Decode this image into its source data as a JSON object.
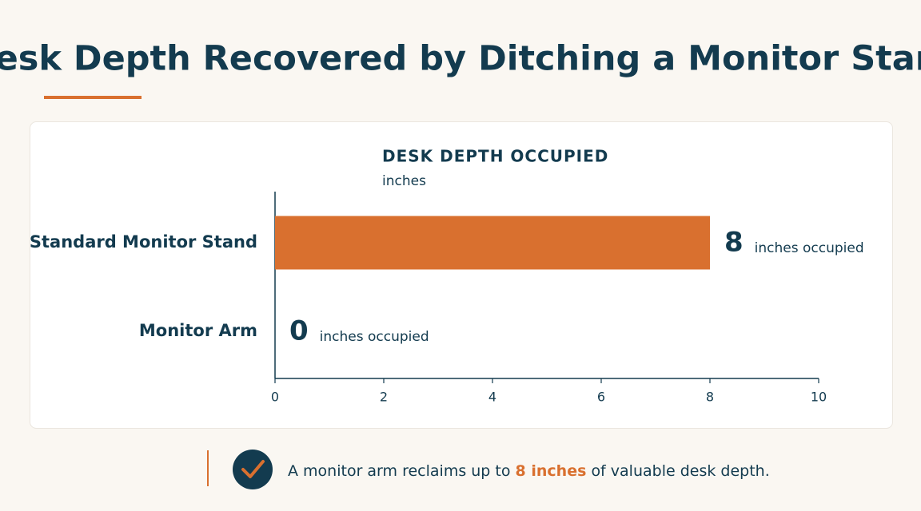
{
  "chart_data": {
    "type": "bar",
    "orientation": "horizontal",
    "title": "Desk Depth Recovered by Ditching a Monitor Stand",
    "chart_title": "DESK DEPTH OCCUPIED",
    "axis_unit": "inches",
    "categories": [
      "Standard Monitor Stand",
      "Monitor Arm"
    ],
    "values": [
      8,
      0
    ],
    "value_suffix": "inches occupied",
    "color": "#d9702f",
    "xlim": [
      0,
      10
    ],
    "xticks": [
      0,
      2,
      4,
      6,
      8,
      10
    ],
    "callout": {
      "before": "A monitor arm reclaims up to",
      "highlight": "8 inches",
      "after": "of valuable desk depth."
    }
  }
}
